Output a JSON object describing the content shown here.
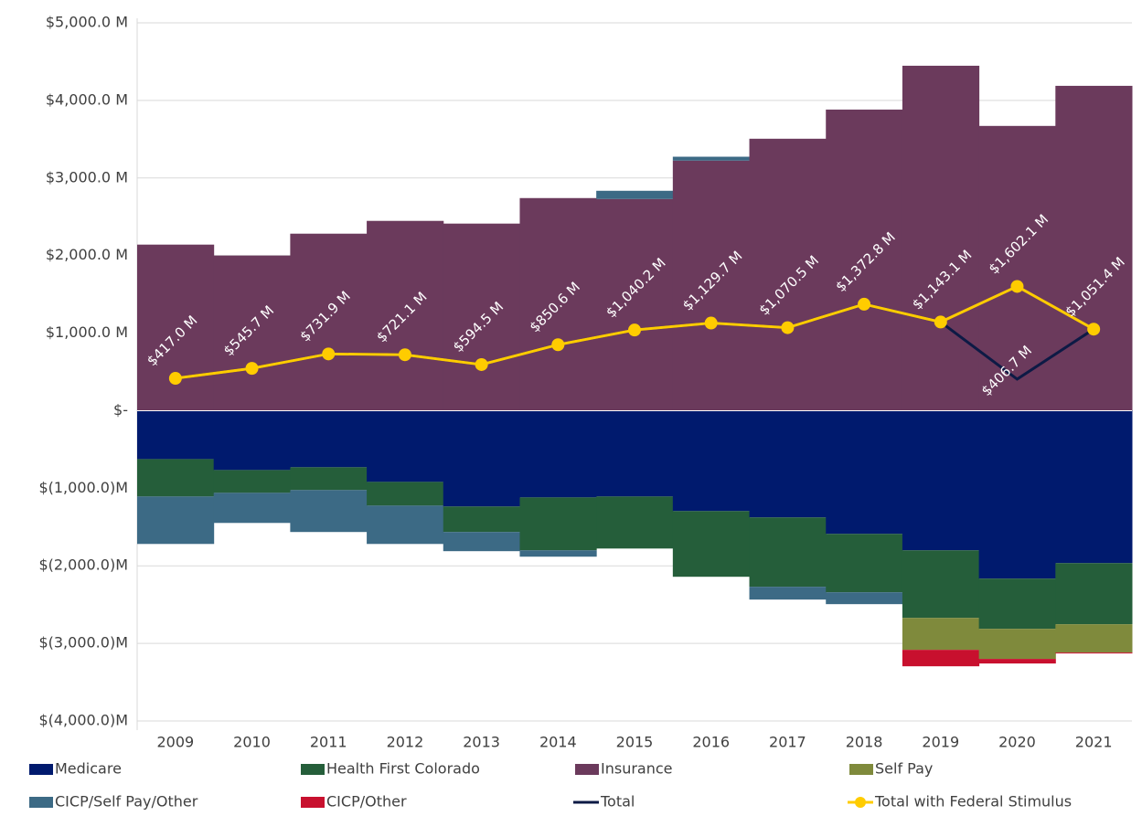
{
  "chart_data": {
    "type": "bar",
    "categories": [
      "2009",
      "2010",
      "2011",
      "2012",
      "2013",
      "2014",
      "2015",
      "2016",
      "2017",
      "2018",
      "2019",
      "2020",
      "2021"
    ],
    "ylim": [
      -4000,
      5000
    ],
    "yticks": [
      {
        "value": 5000,
        "label": "$5,000.0 M"
      },
      {
        "value": 4000,
        "label": "$4,000.0 M"
      },
      {
        "value": 3000,
        "label": "$3,000.0 M"
      },
      {
        "value": 2000,
        "label": "$2,000.0 M"
      },
      {
        "value": 1000,
        "label": "$1,000.0 M"
      },
      {
        "value": 0,
        "label": "$-"
      },
      {
        "value": -1000,
        "label": "$(1,000.0)M"
      },
      {
        "value": -2000,
        "label": "$(2,000.0)M"
      },
      {
        "value": -3000,
        "label": "$(3,000.0)M"
      },
      {
        "value": -4000,
        "label": "$(4,000.0)M"
      }
    ],
    "grid": true,
    "legend": "bottom",
    "series": [
      {
        "name": "Medicare",
        "type": "bar",
        "color": "#001a6e",
        "values": [
          -624,
          -765,
          -729,
          -918,
          -1235,
          -1118,
          -1106,
          -1294,
          -1376,
          -1588,
          -1800,
          -2165,
          -1965
        ]
      },
      {
        "name": "Health First Colorado",
        "type": "bar",
        "color": "#255e3a",
        "values": [
          -482,
          -294,
          -294,
          -306,
          -329,
          -682,
          -671,
          -847,
          -894,
          -753,
          -871,
          -647,
          -788
        ]
      },
      {
        "name": "Insurance",
        "type": "bar",
        "color": "#6b3a5c",
        "values": [
          2141,
          2000,
          2282,
          2447,
          2412,
          2741,
          2729,
          3224,
          3506,
          3882,
          4447,
          3671,
          4188
        ]
      },
      {
        "name": "Self Pay",
        "type": "bar",
        "color": "#7f8a3c",
        "values": [
          null,
          null,
          null,
          null,
          null,
          null,
          null,
          null,
          null,
          null,
          -412,
          -388,
          -365
        ]
      },
      {
        "name": "CICP/Self Pay/Other",
        "type": "bar",
        "color": "#3c6a85",
        "values": [
          -612,
          -388,
          -541,
          -494,
          -247,
          -82,
          106,
          50,
          -165,
          -153,
          null,
          null,
          null
        ]
      },
      {
        "name": "CICP/Other",
        "type": "bar",
        "color": "#c8102e",
        "values": [
          null,
          null,
          null,
          null,
          null,
          null,
          null,
          null,
          null,
          null,
          -212,
          -59,
          -12
        ]
      },
      {
        "name": "Total",
        "type": "line",
        "color": "#0d1a45",
        "marker": false,
        "values": [
          417.0,
          545.7,
          731.9,
          721.1,
          594.5,
          850.6,
          1040.2,
          1129.7,
          1070.5,
          1372.8,
          1143.1,
          406.7,
          1051.4
        ],
        "value_labels": [
          null,
          null,
          null,
          null,
          null,
          null,
          null,
          null,
          null,
          null,
          null,
          "$406.7 M",
          null
        ]
      },
      {
        "name": "Total with Federal Stimulus",
        "type": "line",
        "color": "#ffcc00",
        "marker": true,
        "values": [
          417.0,
          545.7,
          731.9,
          721.1,
          594.5,
          850.6,
          1040.2,
          1129.7,
          1070.5,
          1372.8,
          1143.1,
          1602.1,
          1051.4
        ],
        "value_labels": [
          "$417.0 M",
          "$545.7 M",
          "$731.9 M",
          "$721.1 M",
          "$594.5 M",
          "$850.6 M",
          "$1,040.2 M",
          "$1,129.7 M",
          "$1,070.5 M",
          "$1,372.8 M",
          "$1,143.1 M",
          "$1,602.1 M",
          "$1,051.4 M"
        ]
      }
    ]
  }
}
